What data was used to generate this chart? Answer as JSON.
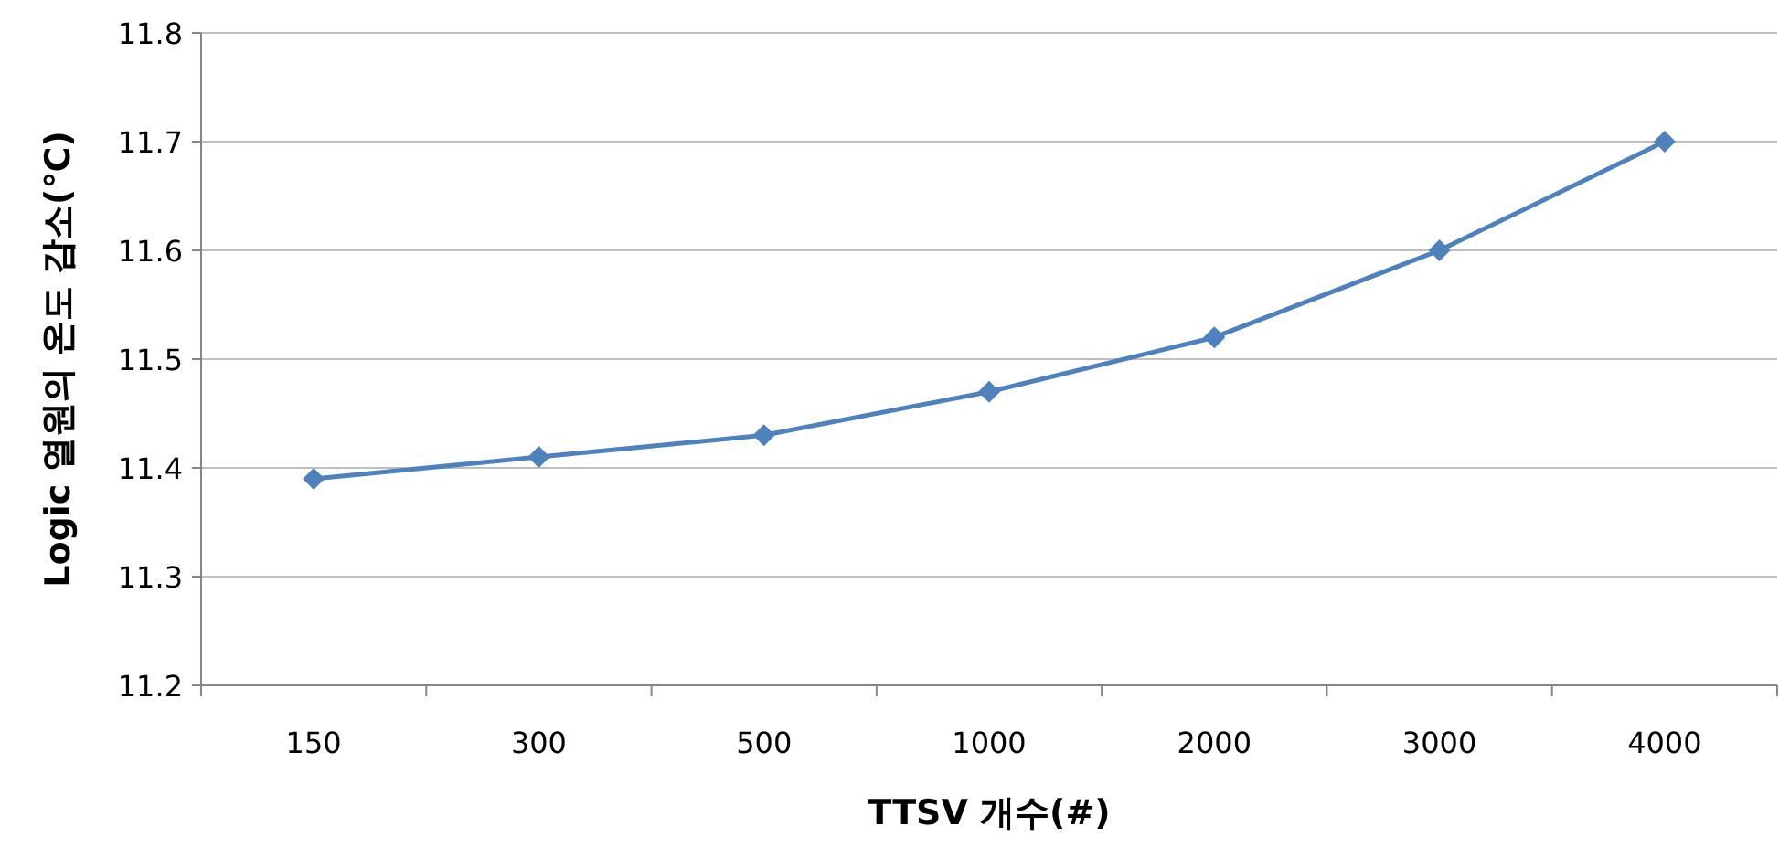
{
  "chart_data": {
    "type": "line",
    "xlabel": "TTSV 개수(#)",
    "ylabel": "Logic 열원의 온도 감소(℃)",
    "categories": [
      "150",
      "300",
      "500",
      "1000",
      "2000",
      "3000",
      "4000"
    ],
    "series": [
      {
        "color": "#4f81bd",
        "values": [
          11.39,
          11.41,
          11.43,
          11.47,
          11.52,
          11.6,
          11.7
        ]
      }
    ],
    "ylim": [
      11.2,
      11.8
    ],
    "yticks": [
      11.2,
      11.3,
      11.4,
      11.5,
      11.6,
      11.7,
      11.8
    ],
    "grid": "y",
    "marker": "diamond",
    "line_style": "solid"
  }
}
